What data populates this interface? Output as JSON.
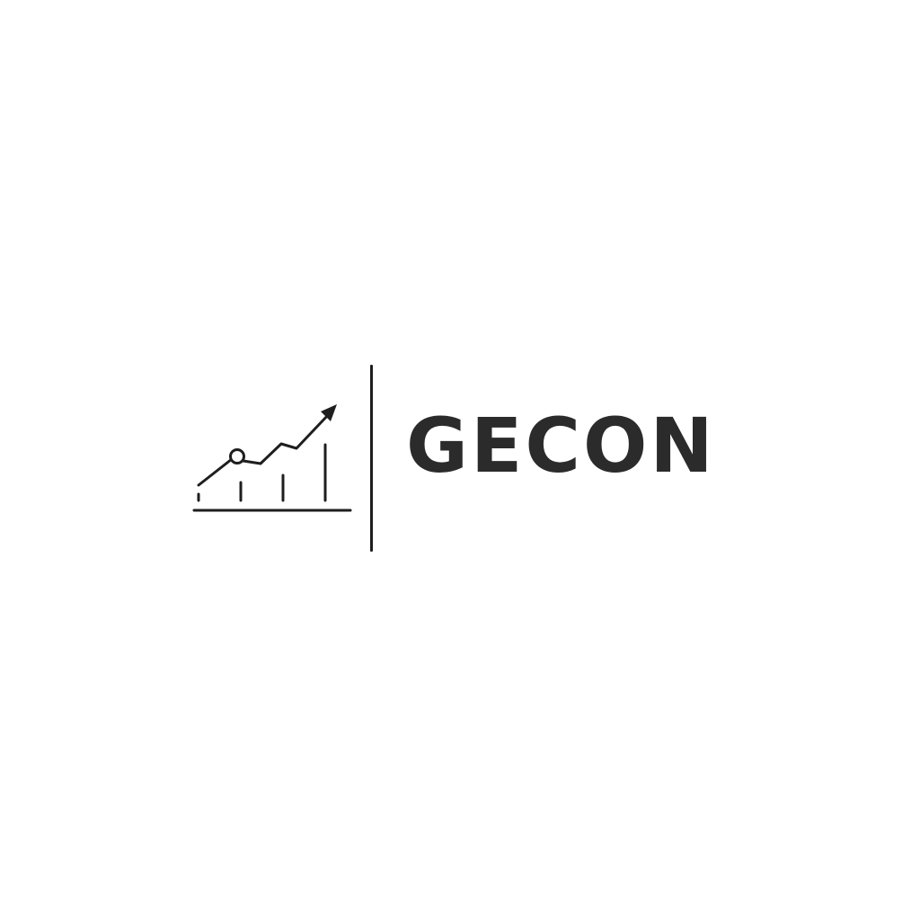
{
  "brand": {
    "name": "GECON",
    "text_color": "#2b2b2b",
    "line_color": "#1e1e1e",
    "background_color": "#ffffff"
  },
  "logo": {
    "icon": "growth-chart-icon"
  }
}
